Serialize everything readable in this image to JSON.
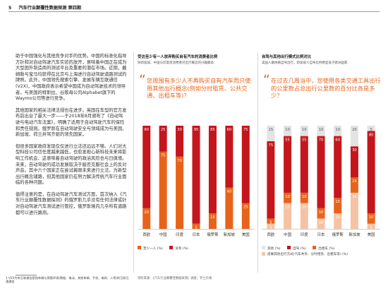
{
  "header": {
    "page_number": "5",
    "title": "汽车行业颠覆性数据探测 第四期"
  },
  "left_column": {
    "paragraphs": [
      "助于中国强化与其他竞争对手的优势。中国的标准化指导方针和对自动驾驶汽车实验的放开，意味着中国正在成为大型国外制造商的测试平台及重要的潜在市场。近期，戴姆勒与宝马均获得在北京与上海进行自动驾驶道路测试的牌照。此外，中国领先搜索引擎、发展车辆互联通信(V2X)，中国政府表示希望中国成为自动驾驶技术的领导者，与美国的特斯拉、谷歌母公司Alphabet旗下的Waymo公司等进行竞争。",
      "其他国家的相关法律法规也在进步。英国在车型的官方发布前出台了最大一步——于2018年8月颁布了《自动驾驶与电动汽车法案》，明确了适用于自动驾驶汽车的保险和责任规则。俄罗斯在自动驾驶安全与领域成为与美国、新加坡、荷兰并驾齐驱的领先国家。",
      "但很多国家政府发现仅仅进行立法还远远不够。人们对大型科技公司信任度越来越低，也愈发担心新科技未来将影响工作机会、这意味着自动驾驶的政治风险也与日俱增。未来，自动驾驶的成功发展取决于能否克服社会上的反对声音。其中六个国家正在尝试着眼未来进行立法，为新型出行概念铺路，但其他国家仍在努力解决传统汽车行业面临的各种问题。",
      "值得注意的是，在自动驾驶汽车测试方面，首次纳入《汽车行业颠覆性数据探测》的俄罗斯几乎没有任何法律或针对自动驾驶汽车测试进行管控，俄罗斯境内几乎所有道路都可以进行路测。"
    ],
    "footnote": "1 V2X为车互联通信是指车辆与周围环境(数据、电动、其他车辆、手机、电网、人等)的互联互通通信"
  },
  "panel1": {
    "title": "受访至少有一人放弃购买自有汽车的消费者比例",
    "subtitle": "除新加坡、中国与印度则消费者对出行概念的兴趣最高",
    "quote": "您周围有多少人不再购买自有汽车而只使用其他出行概念(例如分时租赁、公共交通、出租车等)？",
    "legend": [
      {
        "label": "至少一人 (%)",
        "color": "#e8631a"
      },
      {
        "label": "没有 (%)",
        "color": "#c4161c"
      }
    ],
    "source": "资料来源：《汽车行业颠覆性数据探测》调查；罗兰贝格"
  },
  "panel2": {
    "title": "自驾与其他出行模式比例对比",
    "subtitle": "美国人最依赖自驾出行，新加坡人自驾比例明显低于欧洲国家",
    "quote": "在过去几周当中，您使用各类交通工具出行的公里数占总出行公里数的百分比各是多少？",
    "legend": [
      {
        "label": "其他 (%)",
        "color": "#e3e3e3"
      },
      {
        "label": "自驾 (%)",
        "color": "#c4161c"
      },
      {
        "label": "出租车 (%)",
        "color": "#e8631a"
      },
      {
        "label": "搭乘其他出行方式(汽车共享、分时租赁、出租车等) (%)",
        "color": "#f5c3a4"
      }
    ]
  },
  "chart_data": [
    {
      "type": "bar",
      "stacked": true,
      "categories": [
        "西欧",
        "中国",
        "印度",
        "日本",
        "俄罗斯",
        "新加坡",
        "美国"
      ],
      "series": [
        {
          "name": "至少一人 (%)",
          "color": "#e8631a",
          "values": [
            20,
            75,
            70,
            5,
            15,
            40,
            25
          ]
        },
        {
          "name": "没有 (%)",
          "color": "#c4161c",
          "values": [
            80,
            25,
            30,
            95,
            85,
            60,
            75
          ]
        }
      ],
      "ylim": [
        0,
        100
      ]
    },
    {
      "type": "bar",
      "stacked": true,
      "categories": [
        "西欧",
        "中国",
        "印度",
        "日本",
        "俄罗斯",
        "新加坡",
        "美国"
      ],
      "series": [
        {
          "name": "搭乘其他出行方式(汽车共享、分时租赁、出租车等) (%)",
          "color": "#f5c3a4",
          "values": [
            5,
            25,
            25,
            10,
            15,
            35,
            5
          ]
        },
        {
          "name": "出租车 (%)",
          "color": "#e8631a",
          "values": [
            5,
            10,
            10,
            10,
            15,
            15,
            10
          ]
        },
        {
          "name": "自驾 (%)",
          "color": "#c4161c",
          "values": [
            75,
            55,
            55,
            70,
            60,
            30,
            80
          ]
        },
        {
          "name": "其他 (%)",
          "color": "#e3e3e3",
          "values": [
            15,
            10,
            10,
            10,
            10,
            20,
            5
          ]
        }
      ],
      "ylim": [
        0,
        100
      ]
    }
  ]
}
